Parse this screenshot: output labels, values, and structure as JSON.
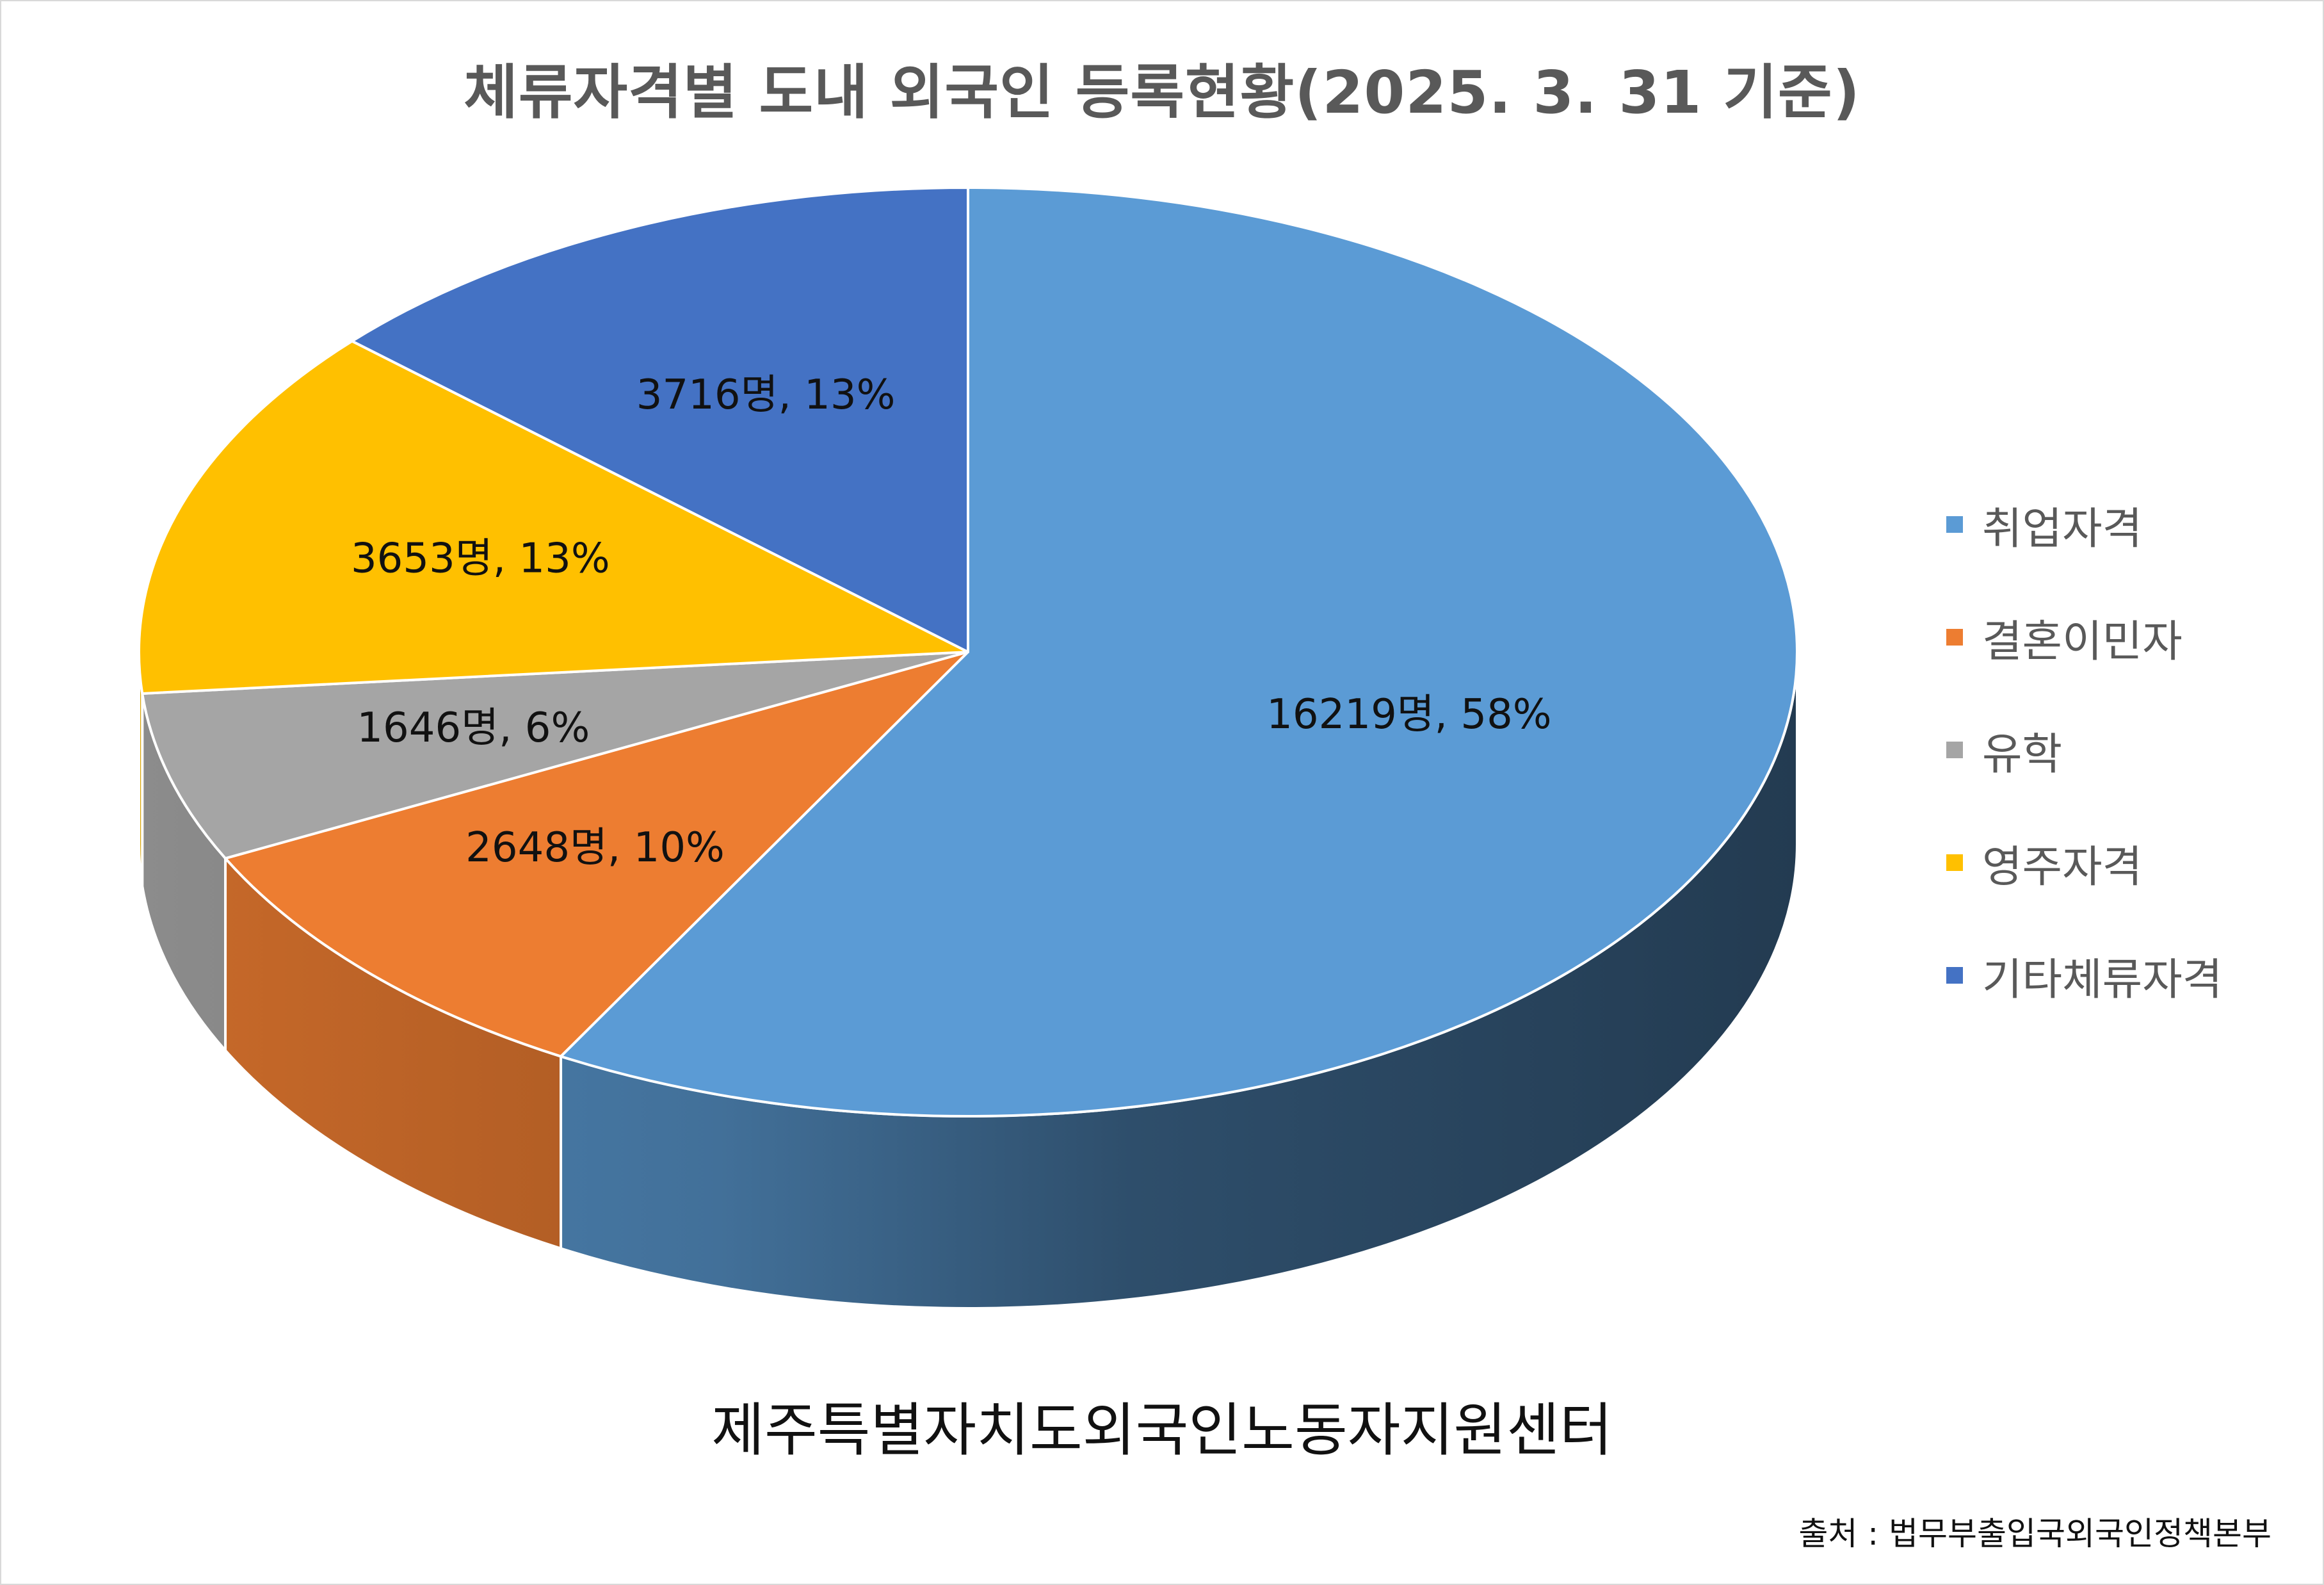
{
  "chart_data": {
    "type": "pie",
    "title": "체류자격별 도내 외국인 등록현황(2025. 3. 31 기준)",
    "slices": [
      {
        "label": "취업자격",
        "value": 16219,
        "percent": 58,
        "color": "#5B9BD5",
        "data_label": "16219명, 58%"
      },
      {
        "label": "결혼이민자",
        "value": 2648,
        "percent": 10,
        "color": "#ED7D31",
        "data_label": "2648명, 10%"
      },
      {
        "label": "유학",
        "value": 1646,
        "percent": 6,
        "color": "#A5A5A5",
        "data_label": "1646명, 6%"
      },
      {
        "label": "영주자격",
        "value": 3653,
        "percent": 13,
        "color": "#FFC000",
        "data_label": "3653명, 13%"
      },
      {
        "label": "기타체류자격",
        "value": 3716,
        "percent": 13,
        "color": "#4472C4",
        "data_label": "3716명, 13%"
      }
    ],
    "legend_position": "right"
  },
  "footer": {
    "center_name": "제주특별자치도외국인노동자지원센터",
    "source": "출처 : 법무부출입국외국인정책본부"
  }
}
